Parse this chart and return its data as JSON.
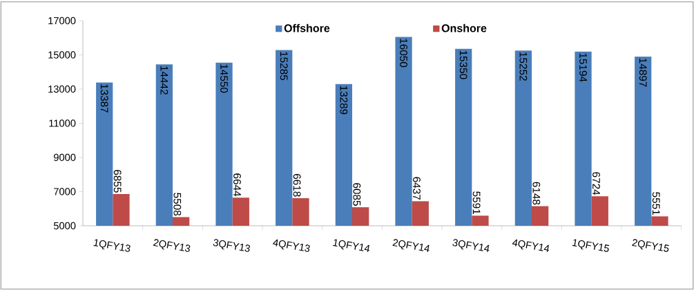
{
  "chart_data": {
    "type": "bar",
    "categories": [
      "1QFY13",
      "2QFY13",
      "3QFY13",
      "4QFY13",
      "1QFY14",
      "2QFY14",
      "3QFY14",
      "4QFY14",
      "1QFY15",
      "2QFY15"
    ],
    "series": [
      {
        "name": "Offshore",
        "color": "#4a7ebb",
        "values": [
          13387,
          14442,
          14550,
          15285,
          13289,
          16050,
          15350,
          15252,
          15194,
          14897
        ]
      },
      {
        "name": "Onshore",
        "color": "#be4b48",
        "values": [
          6855,
          5508,
          6644,
          6618,
          6085,
          6437,
          5591,
          6148,
          6724,
          5551
        ]
      }
    ],
    "ylim": [
      5000,
      17000
    ],
    "yticks": [
      5000,
      7000,
      9000,
      11000,
      13000,
      15000,
      17000
    ],
    "grid": false,
    "legend": "top",
    "data_labels": true
  }
}
